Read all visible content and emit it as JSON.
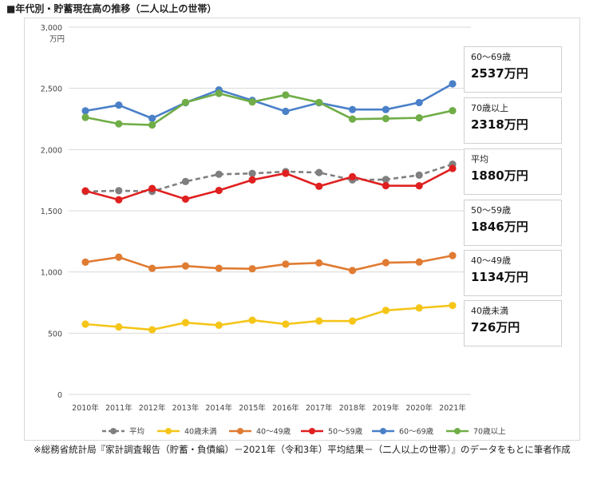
{
  "title": "■年代別・貯蓄現在高の推移（二人以上の世帯）",
  "source_note": "※総務省統計局『家計調査報告（貯蓄・負債編）－2021年（令和3年）平均結果－（二人以上の世帯）』のデータをもとに筆者作成",
  "callouts": [
    {
      "label": "60～69歳",
      "value": "2537万円"
    },
    {
      "label": "70歳以上",
      "value": "2318万円"
    },
    {
      "label": "平均",
      "value": "1880万円"
    },
    {
      "label": "50～59歳",
      "value": "1846万円"
    },
    {
      "label": "40～49歳",
      "value": "1134万円"
    },
    {
      "label": "40歳未満",
      "value": "726万円"
    }
  ],
  "chart_data": {
    "type": "line",
    "title": "",
    "xlabel": "",
    "ylabel": "万円",
    "ylim": [
      0,
      3000
    ],
    "yticks": [
      "0",
      "500",
      "1,000",
      "1,500",
      "2,000",
      "2,500",
      "3,000"
    ],
    "ytick_values": [
      0,
      500,
      1000,
      1500,
      2000,
      2500,
      3000
    ],
    "categories": [
      "2010年",
      "2011年",
      "2012年",
      "2013年",
      "2014年",
      "2015年",
      "2016年",
      "2017年",
      "2018年",
      "2019年",
      "2020年",
      "2021年"
    ],
    "grid": true,
    "legend_position": "bottom",
    "series": [
      {
        "name": "平均",
        "color": "#7f7f7f",
        "dashed": true,
        "values": [
          1657,
          1664,
          1658,
          1739,
          1798,
          1805,
          1820,
          1812,
          1752,
          1755,
          1791,
          1880
        ]
      },
      {
        "name": "40歳未満",
        "color": "#f5c518",
        "dashed": false,
        "values": [
          574,
          551,
          528,
          586,
          565,
          606,
          574,
          600,
          599,
          686,
          706,
          726
        ]
      },
      {
        "name": "40～49歳",
        "color": "#e07b32",
        "dashed": false,
        "values": [
          1080,
          1121,
          1030,
          1049,
          1030,
          1026,
          1064,
          1074,
          1012,
          1076,
          1081,
          1134
        ]
      },
      {
        "name": "50～59歳",
        "color": "#e02020",
        "dashed": false,
        "values": [
          1662,
          1590,
          1682,
          1595,
          1666,
          1752,
          1806,
          1700,
          1778,
          1705,
          1704,
          1846
        ]
      },
      {
        "name": "60～69歳",
        "color": "#4a80c8",
        "dashed": false,
        "values": [
          2316,
          2363,
          2255,
          2383,
          2487,
          2402,
          2312,
          2382,
          2327,
          2327,
          2384,
          2537
        ]
      },
      {
        "name": "70歳以上",
        "color": "#70ad47",
        "dashed": false,
        "values": [
          2263,
          2210,
          2201,
          2385,
          2459,
          2389,
          2446,
          2385,
          2249,
          2253,
          2259,
          2318
        ]
      }
    ]
  }
}
